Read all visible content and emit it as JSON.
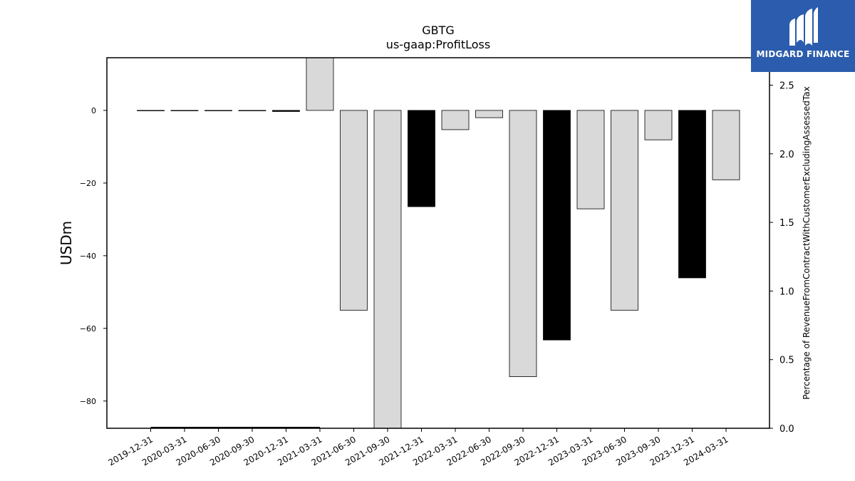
{
  "chart_data": {
    "type": "bar",
    "title": "GBTG",
    "subtitle": "us-gaap:ProfitLoss",
    "ylabel": "USDm",
    "y2label": "Percentage of RevenueFromContractWithCustomerExcludingAssessedTax",
    "ylim": [
      -87.5,
      14.5
    ],
    "y2lim": [
      0.0,
      2.7
    ],
    "yticks": [
      0,
      -20,
      -40,
      -60,
      -80
    ],
    "y2ticks": [
      0.0,
      0.5,
      1.0,
      1.5,
      2.0,
      2.5
    ],
    "y2tick_labels": [
      "0.0",
      "0.5",
      "1.0",
      "1.5",
      "2.0",
      "2.5"
    ],
    "categories": [
      "2019-12-31",
      "2020-03-31",
      "2020-06-30",
      "2020-09-30",
      "2020-12-31",
      "2021-03-31",
      "2021-06-30",
      "2021-09-30",
      "2021-12-31",
      "2022-03-31",
      "2022-06-30",
      "2022-09-30",
      "2022-12-31",
      "2023-03-31",
      "2023-06-30",
      "2023-09-30",
      "2023-12-31",
      "2024-03-31"
    ],
    "values": [
      0,
      0,
      0,
      0,
      -0.3,
      14.5,
      -55,
      -87.5,
      -26.5,
      -5.3,
      -2,
      -73.3,
      -63.2,
      -27.1,
      -55,
      -8.1,
      -46.1,
      -19.1
    ],
    "bar_colors": [
      "#d9d9d9",
      "#d9d9d9",
      "#d9d9d9",
      "#d9d9d9",
      "#000000",
      "#d9d9d9",
      "#d9d9d9",
      "#d9d9d9",
      "#000000",
      "#d9d9d9",
      "#d9d9d9",
      "#d9d9d9",
      "#000000",
      "#d9d9d9",
      "#d9d9d9",
      "#d9d9d9",
      "#000000",
      "#d9d9d9"
    ],
    "secondary_series": {
      "type": "line",
      "x_range": [
        "2019-12-31",
        "2021-03-31"
      ],
      "values": [
        0,
        0,
        0,
        0,
        0,
        0
      ],
      "color": "#000000"
    },
    "grid": false,
    "legend": "none"
  },
  "logo": {
    "text": "MIDGARD FINANCE",
    "background": "#2b5cad",
    "text_color": "#ffffff"
  }
}
